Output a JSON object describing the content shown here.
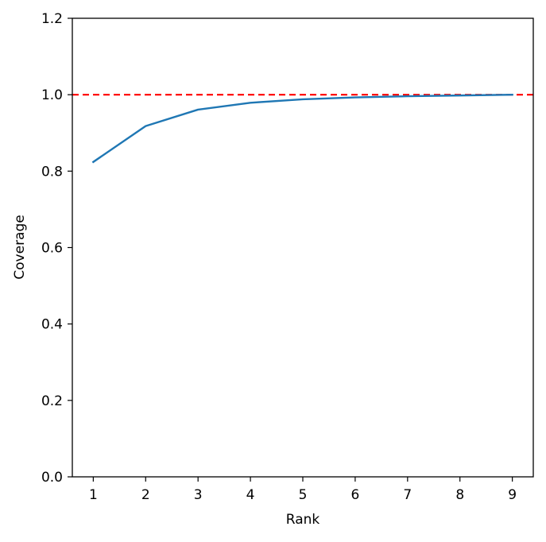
{
  "chart_data": {
    "type": "line",
    "xlabel": "Rank",
    "ylabel": "Coverage",
    "xlim": [
      0.6,
      9.4
    ],
    "ylim": [
      0.0,
      1.2
    ],
    "xticks": [
      1,
      2,
      3,
      4,
      5,
      6,
      7,
      8,
      9
    ],
    "yticks": [
      0.0,
      0.2,
      0.4,
      0.6,
      0.8,
      1.0,
      1.2
    ],
    "xtick_labels": [
      "1",
      "2",
      "3",
      "4",
      "5",
      "6",
      "7",
      "8",
      "9"
    ],
    "ytick_labels": [
      "0.0",
      "0.2",
      "0.4",
      "0.6",
      "0.8",
      "1.0",
      "1.2"
    ],
    "grid": false,
    "series": [
      {
        "x": [
          1,
          2,
          3,
          4,
          5,
          6,
          7,
          8,
          9
        ],
        "values": [
          0.824,
          0.918,
          0.961,
          0.979,
          0.988,
          0.993,
          0.996,
          0.998,
          1.0
        ],
        "color": "#1f77b4",
        "line_style": "solid"
      }
    ],
    "reference_lines": [
      {
        "orientation": "horizontal",
        "y": 1.0,
        "color": "#ff0000",
        "line_style": "dashed"
      }
    ]
  }
}
